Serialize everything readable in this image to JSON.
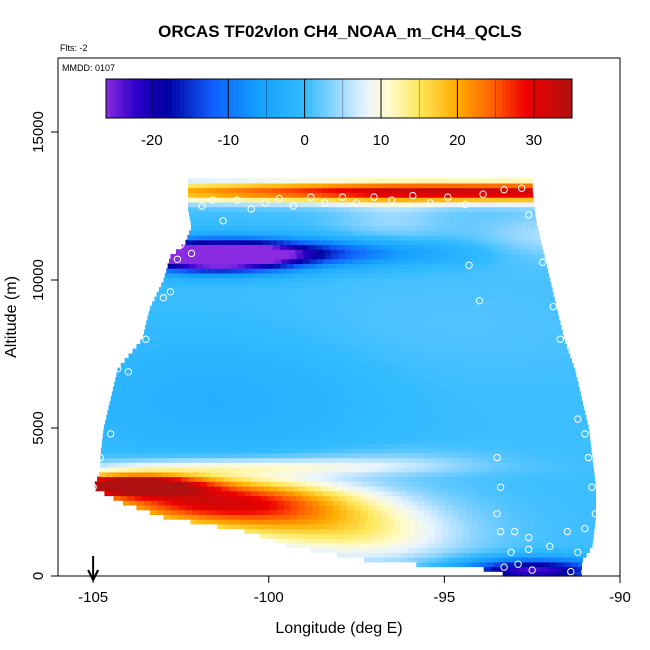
{
  "chart_data": {
    "type": "heatmap",
    "title": "ORCAS TF02vlon CH4_NOAA_m_CH4_QCLS",
    "flts_label": "Flts: -2",
    "mmdd_label": "MMDD: 0107",
    "xlabel": "Longitude (deg E)",
    "ylabel": "Altitude (m)",
    "xlim": [
      -106,
      -90
    ],
    "ylim": [
      0,
      17500
    ],
    "xticks": [
      -105,
      -100,
      -95,
      -90
    ],
    "xtick_labels": [
      "-105",
      "-100",
      "-95",
      "-90"
    ],
    "yticks": [
      0,
      5000,
      10000,
      15000
    ],
    "ytick_labels": [
      "0",
      "5000",
      "10000",
      "15000"
    ],
    "colorbar": {
      "range": [
        -26,
        35
      ],
      "ticks": [
        -20,
        -10,
        0,
        10,
        20,
        30
      ],
      "tick_labels": [
        "-20",
        "-10",
        "0",
        "10",
        "20",
        "30"
      ],
      "colors": [
        {
          "v": -26,
          "c": "#8a2be2"
        },
        {
          "v": -22,
          "c": "#2a00c8"
        },
        {
          "v": -18,
          "c": "#0000a0"
        },
        {
          "v": -12,
          "c": "#1060ff"
        },
        {
          "v": -6,
          "c": "#14a0ff"
        },
        {
          "v": 0,
          "c": "#33bbff"
        },
        {
          "v": 4,
          "c": "#8fd5ff"
        },
        {
          "v": 8,
          "c": "#e8f4ff"
        },
        {
          "v": 11,
          "c": "#fffbd0"
        },
        {
          "v": 15,
          "c": "#ffe85a"
        },
        {
          "v": 20,
          "c": "#ffab00"
        },
        {
          "v": 25,
          "c": "#ff5a00"
        },
        {
          "v": 29,
          "c": "#ee0000"
        },
        {
          "v": 35,
          "c": "#b01010"
        }
      ]
    },
    "envelope_left": [
      [
        0,
        -93.3
      ],
      [
        200,
        -93.4
      ],
      [
        500,
        -97.0
      ],
      [
        1000,
        -99.4
      ],
      [
        1500,
        -100.6
      ],
      [
        2000,
        -103.0
      ],
      [
        2500,
        -104.2
      ],
      [
        3000,
        -105.0
      ],
      [
        3500,
        -104.8
      ],
      [
        4000,
        -104.8
      ],
      [
        5000,
        -104.7
      ],
      [
        6000,
        -104.5
      ],
      [
        7000,
        -104.3
      ],
      [
        8000,
        -103.6
      ],
      [
        9000,
        -103.4
      ],
      [
        10000,
        -103.0
      ],
      [
        10800,
        -102.8
      ],
      [
        11200,
        -102.4
      ],
      [
        11800,
        -102.2
      ],
      [
        12400,
        -102.3
      ],
      [
        12700,
        -102.3
      ]
    ],
    "envelope_right": [
      [
        0,
        -91.1
      ],
      [
        500,
        -91.1
      ],
      [
        1000,
        -90.8
      ],
      [
        2000,
        -90.7
      ],
      [
        3000,
        -90.7
      ],
      [
        4000,
        -90.8
      ],
      [
        5000,
        -90.9
      ],
      [
        6000,
        -91.1
      ],
      [
        7000,
        -91.3
      ],
      [
        8000,
        -91.6
      ],
      [
        9000,
        -91.8
      ],
      [
        10000,
        -92.0
      ],
      [
        11000,
        -92.2
      ],
      [
        12000,
        -92.4
      ],
      [
        13000,
        -92.5
      ]
    ],
    "features": [
      {
        "lon": -93.5,
        "alt": 13000,
        "slon": 9.0,
        "salt": 250,
        "amp": 32
      },
      {
        "lon": -101.5,
        "alt": 10800,
        "slon": 1.6,
        "salt": 350,
        "amp": -34
      },
      {
        "lon": -99.5,
        "alt": 10950,
        "slon": 3.0,
        "salt": 320,
        "amp": -14
      },
      {
        "lon": -104.0,
        "alt": 3100,
        "slon": 1.4,
        "salt": 250,
        "amp": 34
      },
      {
        "lon": -102.0,
        "alt": 2600,
        "slon": 2.6,
        "salt": 550,
        "amp": 24
      },
      {
        "lon": -99.5,
        "alt": 2000,
        "slon": 2.6,
        "salt": 700,
        "amp": 14
      },
      {
        "lon": -97.0,
        "alt": 1200,
        "slon": 2.0,
        "salt": 650,
        "amp": 7
      },
      {
        "lon": -92.5,
        "alt": 200,
        "slon": 1.5,
        "salt": 280,
        "amp": -24
      },
      {
        "lon": -100.5,
        "alt": 3700,
        "slon": 3.5,
        "salt": 200,
        "amp": 8
      },
      {
        "lon": -96.5,
        "alt": 3900,
        "slon": 2.0,
        "salt": 300,
        "amp": 3
      },
      {
        "lon": -92.0,
        "alt": 11500,
        "slon": 1.5,
        "salt": 600,
        "amp": 5
      },
      {
        "lon": -96.5,
        "alt": 12100,
        "slon": 1.2,
        "salt": 700,
        "amp": 4
      },
      {
        "lon": -95.0,
        "alt": 8500,
        "slon": 3.5,
        "salt": 1200,
        "amp": 1
      },
      {
        "lon": -101.5,
        "alt": 6000,
        "slon": 3.0,
        "salt": 1500,
        "amp": -3
      }
    ],
    "data_points": [
      {
        "lon": -105.0,
        "alt": 3000
      },
      {
        "lon": -104.8,
        "alt": 4000
      },
      {
        "lon": -104.5,
        "alt": 4800
      },
      {
        "lon": -104.3,
        "alt": 7000
      },
      {
        "lon": -104.0,
        "alt": 6900
      },
      {
        "lon": -103.8,
        "alt": 8100
      },
      {
        "lon": -103.5,
        "alt": 8000
      },
      {
        "lon": -103.5,
        "alt": 9000
      },
      {
        "lon": -103.0,
        "alt": 9400
      },
      {
        "lon": -102.8,
        "alt": 9600
      },
      {
        "lon": -102.6,
        "alt": 10700
      },
      {
        "lon": -102.5,
        "alt": 11200
      },
      {
        "lon": -102.4,
        "alt": 11800
      },
      {
        "lon": -102.2,
        "alt": 10900
      },
      {
        "lon": -101.9,
        "alt": 12500
      },
      {
        "lon": -101.6,
        "alt": 12700
      },
      {
        "lon": -101.3,
        "alt": 12000
      },
      {
        "lon": -100.9,
        "alt": 12700
      },
      {
        "lon": -100.5,
        "alt": 12400
      },
      {
        "lon": -100.1,
        "alt": 12600
      },
      {
        "lon": -99.7,
        "alt": 12750
      },
      {
        "lon": -99.3,
        "alt": 12500
      },
      {
        "lon": -98.8,
        "alt": 12800
      },
      {
        "lon": -98.4,
        "alt": 12600
      },
      {
        "lon": -97.9,
        "alt": 12800
      },
      {
        "lon": -97.5,
        "alt": 12600
      },
      {
        "lon": -97.0,
        "alt": 12800
      },
      {
        "lon": -96.5,
        "alt": 12700
      },
      {
        "lon": -95.9,
        "alt": 12850
      },
      {
        "lon": -95.4,
        "alt": 12600
      },
      {
        "lon": -94.9,
        "alt": 12800
      },
      {
        "lon": -94.4,
        "alt": 12550
      },
      {
        "lon": -93.9,
        "alt": 12900
      },
      {
        "lon": -93.3,
        "alt": 13050
      },
      {
        "lon": -92.8,
        "alt": 13100
      },
      {
        "lon": -92.6,
        "alt": 12200
      },
      {
        "lon": -94.3,
        "alt": 10500
      },
      {
        "lon": -94.0,
        "alt": 9300
      },
      {
        "lon": -92.2,
        "alt": 10600
      },
      {
        "lon": -91.9,
        "alt": 9100
      },
      {
        "lon": -91.7,
        "alt": 8000
      },
      {
        "lon": -91.2,
        "alt": 5300
      },
      {
        "lon": -91.0,
        "alt": 4800
      },
      {
        "lon": -90.9,
        "alt": 4000
      },
      {
        "lon": -90.8,
        "alt": 3000
      },
      {
        "lon": -90.7,
        "alt": 2100
      },
      {
        "lon": -93.5,
        "alt": 4000
      },
      {
        "lon": -93.4,
        "alt": 3000
      },
      {
        "lon": -93.5,
        "alt": 2100
      },
      {
        "lon": -93.4,
        "alt": 1500
      },
      {
        "lon": -93.0,
        "alt": 1500
      },
      {
        "lon": -92.6,
        "alt": 1300
      },
      {
        "lon": -91.5,
        "alt": 1500
      },
      {
        "lon": -91.0,
        "alt": 1600
      },
      {
        "lon": -93.1,
        "alt": 800
      },
      {
        "lon": -92.6,
        "alt": 900
      },
      {
        "lon": -92.0,
        "alt": 1000
      },
      {
        "lon": -91.2,
        "alt": 800
      },
      {
        "lon": -93.3,
        "alt": 300
      },
      {
        "lon": -92.9,
        "alt": 400
      },
      {
        "lon": -92.5,
        "alt": 200
      },
      {
        "lon": -91.4,
        "alt": 150
      },
      {
        "lon": -91.0,
        "alt": 150
      }
    ],
    "marker_lon": -105
  }
}
